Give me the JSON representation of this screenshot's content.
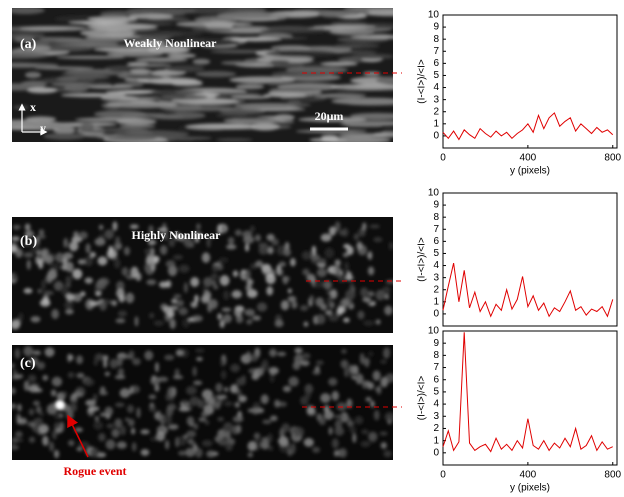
{
  "images": [
    {
      "label": "(a)",
      "title": "Weakly Nonlinear",
      "scale_bar": "20μm",
      "axes": [
        "x",
        "y"
      ]
    },
    {
      "label": "(b)",
      "title": "Highly Nonlinear"
    },
    {
      "label": "(c)",
      "annotation": "Rogue event"
    }
  ],
  "chart_data": [
    {
      "type": "line",
      "ylabel": "(I-<I>)/<I>",
      "xlabel": "y (pixels)",
      "x": [
        0,
        25,
        50,
        75,
        100,
        125,
        150,
        175,
        200,
        225,
        250,
        275,
        300,
        325,
        350,
        375,
        400,
        425,
        450,
        475,
        500,
        525,
        550,
        575,
        600,
        625,
        650,
        675,
        700,
        725,
        750,
        775,
        800
      ],
      "series": [
        {
          "color": "#e00000",
          "values": [
            0.3,
            -0.2,
            0.4,
            -0.3,
            0.5,
            0.1,
            -0.2,
            0.6,
            0.2,
            -0.1,
            0.4,
            0.0,
            0.3,
            -0.2,
            0.2,
            0.5,
            1.0,
            0.3,
            1.7,
            0.6,
            1.5,
            1.9,
            0.8,
            1.2,
            1.5,
            0.4,
            1.0,
            0.6,
            0.2,
            0.7,
            0.3,
            0.5,
            0.1
          ]
        }
      ],
      "xlim": [
        0,
        820
      ],
      "ylim": [
        -1,
        10
      ],
      "xticks": [
        0,
        400,
        800
      ],
      "yticks": [
        0,
        1,
        2,
        3,
        4,
        5,
        6,
        7,
        8,
        9,
        10
      ]
    },
    {
      "type": "line",
      "ylabel": "(I-<I>)/<I>",
      "x": [
        0,
        25,
        50,
        75,
        100,
        125,
        150,
        175,
        200,
        225,
        250,
        275,
        300,
        325,
        350,
        375,
        400,
        425,
        450,
        475,
        500,
        525,
        550,
        575,
        600,
        625,
        650,
        675,
        700,
        725,
        750,
        775,
        800
      ],
      "series": [
        {
          "color": "#e00000",
          "values": [
            0.3,
            2.3,
            4.2,
            1.0,
            3.6,
            0.5,
            1.8,
            0.2,
            1.0,
            -0.2,
            0.8,
            0.3,
            2.0,
            0.4,
            1.2,
            3.1,
            0.6,
            1.5,
            0.3,
            0.9,
            -0.2,
            0.5,
            0.2,
            1.0,
            1.9,
            0.3,
            0.6,
            -0.1,
            0.4,
            0.2,
            0.6,
            -0.2,
            1.2
          ]
        }
      ],
      "xlim": [
        0,
        820
      ],
      "ylim": [
        -1,
        10
      ],
      "yticks": [
        0,
        1,
        2,
        3,
        4,
        5,
        6,
        7,
        8,
        9,
        10
      ]
    },
    {
      "type": "line",
      "ylabel": "(I-<I>)/<I>",
      "xlabel": "y (pixels)",
      "x": [
        0,
        25,
        50,
        75,
        100,
        125,
        150,
        175,
        200,
        225,
        250,
        275,
        300,
        325,
        350,
        375,
        400,
        425,
        450,
        475,
        500,
        525,
        550,
        575,
        600,
        625,
        650,
        675,
        700,
        725,
        750,
        775,
        800
      ],
      "series": [
        {
          "color": "#e00000",
          "values": [
            0.5,
            1.8,
            0.2,
            0.9,
            9.9,
            0.8,
            0.2,
            0.5,
            0.7,
            0.1,
            1.2,
            0.3,
            0.7,
            0.2,
            1.0,
            0.4,
            2.8,
            0.6,
            0.3,
            1.0,
            0.2,
            0.8,
            0.4,
            1.2,
            0.5,
            2.0,
            0.3,
            0.6,
            1.4,
            0.2,
            0.9,
            0.3,
            0.5
          ]
        }
      ],
      "xlim": [
        0,
        820
      ],
      "ylim": [
        -1,
        10
      ],
      "xticks": [
        0,
        400,
        800
      ],
      "yticks": [
        0,
        1,
        2,
        3,
        4,
        5,
        6,
        7,
        8,
        9,
        10
      ]
    }
  ]
}
